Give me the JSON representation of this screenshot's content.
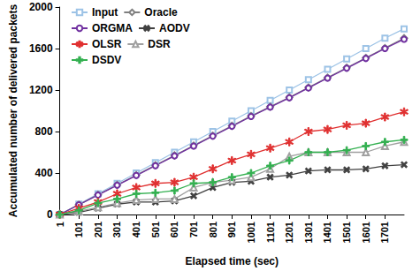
{
  "chart_data": {
    "type": "line",
    "x_label": "Elapsed time (sec)",
    "y_label": "Accumulated number of delivered packets",
    "xlim": [
      1,
      1801
    ],
    "xticks": [
      1,
      101,
      201,
      301,
      401,
      501,
      601,
      701,
      801,
      901,
      1001,
      1101,
      1201,
      1301,
      1401,
      1501,
      1601,
      1701
    ],
    "ylim": [
      0,
      2000
    ],
    "yticks": [
      0,
      400,
      800,
      1200,
      1600,
      2000
    ],
    "grid": false,
    "legend": "top-left",
    "x": [
      1,
      101,
      201,
      301,
      401,
      501,
      601,
      701,
      801,
      901,
      1001,
      1101,
      1201,
      1301,
      1401,
      1501,
      1601,
      1701,
      1801
    ],
    "series": [
      {
        "name": "Input",
        "color": "#9dc3e6",
        "marker": "square",
        "values": [
          0,
          100,
          200,
          300,
          400,
          500,
          600,
          700,
          800,
          900,
          1000,
          1100,
          1200,
          1300,
          1400,
          1500,
          1600,
          1700,
          1790
        ]
      },
      {
        "name": "Oracle",
        "color": "#7f7f7f",
        "marker": "diamond",
        "values": [
          0,
          95,
          190,
          285,
          380,
          475,
          570,
          665,
          760,
          855,
          950,
          1040,
          1130,
          1225,
          1320,
          1415,
          1510,
          1605,
          1700
        ]
      },
      {
        "name": "ORGMA",
        "color": "#7030a0",
        "marker": "circle",
        "values": [
          0,
          94,
          188,
          282,
          376,
          470,
          565,
          660,
          755,
          850,
          945,
          1035,
          1125,
          1220,
          1315,
          1410,
          1505,
          1600,
          1690
        ]
      },
      {
        "name": "AODV",
        "color": "#404040",
        "marker": "x",
        "values": [
          0,
          20,
          60,
          100,
          120,
          120,
          130,
          180,
          260,
          310,
          320,
          360,
          380,
          420,
          430,
          430,
          440,
          470,
          480
        ]
      },
      {
        "name": "OLSR",
        "color": "#e03030",
        "marker": "asterisk",
        "values": [
          0,
          60,
          120,
          200,
          260,
          300,
          310,
          360,
          440,
          520,
          580,
          640,
          700,
          800,
          820,
          860,
          880,
          940,
          990
        ]
      },
      {
        "name": "DSR",
        "color": "#a0a0a0",
        "marker": "triangle",
        "values": [
          0,
          30,
          70,
          110,
          140,
          150,
          150,
          260,
          310,
          330,
          360,
          440,
          560,
          600,
          600,
          600,
          600,
          660,
          700
        ]
      },
      {
        "name": "DSDV",
        "color": "#33b050",
        "marker": "plus",
        "values": [
          0,
          40,
          110,
          150,
          200,
          210,
          230,
          300,
          310,
          360,
          400,
          470,
          520,
          600,
          600,
          620,
          660,
          700,
          720
        ]
      }
    ]
  }
}
